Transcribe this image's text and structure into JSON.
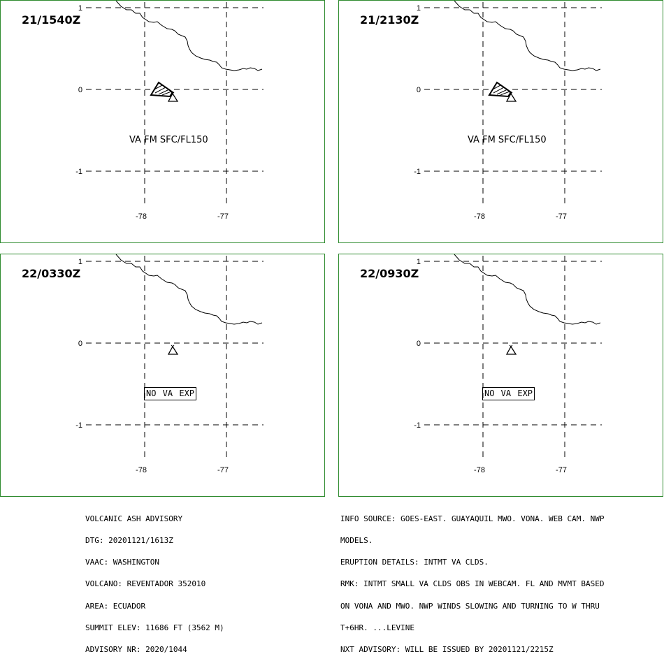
{
  "panels": [
    {
      "time": "21/1540Z",
      "label": "VA FM SFC/FL150",
      "label_boxed": false,
      "ash_cloud": true
    },
    {
      "time": "21/2130Z",
      "label": "VA FM SFC/FL150",
      "label_boxed": false,
      "ash_cloud": true
    },
    {
      "time": "22/0330Z",
      "label": "NO VA EXP",
      "label_boxed": true,
      "ash_cloud": false
    },
    {
      "time": "22/0930Z",
      "label": "NO VA EXP",
      "label_boxed": true,
      "ash_cloud": false
    }
  ],
  "map": {
    "lat_labels": [
      "1",
      "0",
      "-1"
    ],
    "lon_labels": [
      "-78",
      "-77"
    ],
    "line_color": "#2e8b2e"
  },
  "advisory_left": [
    "VOLCANIC ASH ADVISORY",
    "DTG: 20201121/1613Z",
    "VAAC: WASHINGTON",
    "VOLCANO: REVENTADOR 352010",
    "AREA: ECUADOR",
    "SUMMIT ELEV: 11686 FT (3562 M)",
    "ADVISORY NR: 2020/1044"
  ],
  "advisory_right": [
    "INFO SOURCE: GOES-EAST. GUAYAQUIL MWO. VONA. WEB CAM. NWP",
    "MODELS.",
    "ERUPTION DETAILS: INTMT VA CLDS.",
    "RMK: INTMT SMALL VA CLDS OBS IN WEBCAM. FL AND MVMT BASED",
    "ON VONA AND MWO. NWP WINDS SLOWING AND TURNING TO W THRU",
    "T+6HR. ...LEVINE",
    "NXT ADVISORY: WILL BE ISSUED BY 20201121/2215Z"
  ]
}
